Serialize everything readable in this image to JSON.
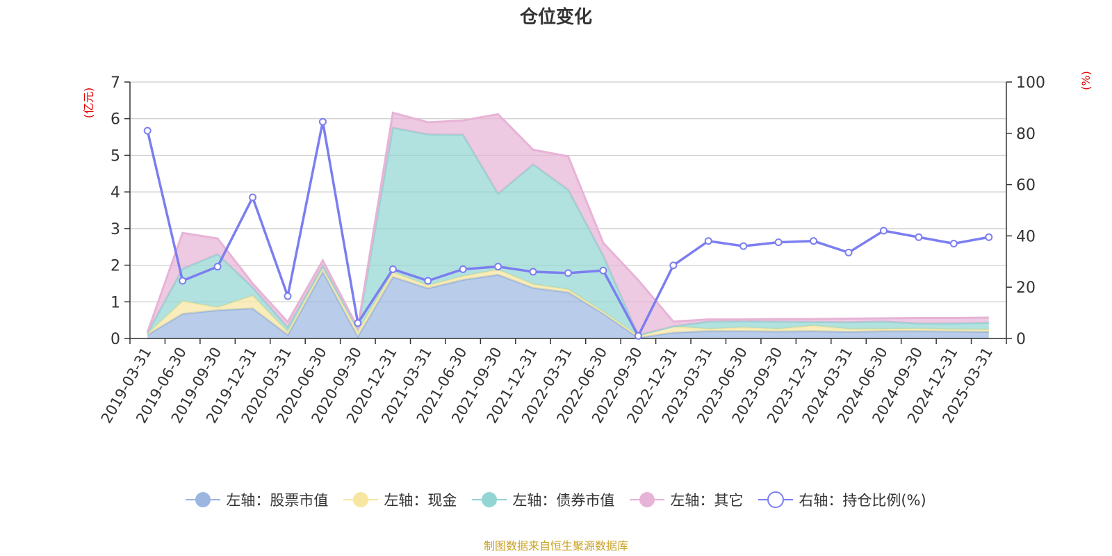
{
  "title": "仓位变化",
  "footer": "制图数据来自恒生聚源数据库",
  "colors": {
    "stock": "#9bb6e0",
    "cash": "#f6e6a0",
    "bond": "#92d5d3",
    "other": "#e7b3d6",
    "ratio": "#7b7ef0",
    "axis_unit": "#e00000"
  },
  "chart_data": {
    "type": "area",
    "stacked": true,
    "title": "仓位变化",
    "left_axis_unit": "(亿元)",
    "right_axis_unit": "(%)",
    "ylim_left": [
      0,
      7
    ],
    "ylim_right": [
      0,
      100
    ],
    "left_ticks": [
      "0",
      "1",
      "2",
      "3",
      "4",
      "5",
      "6",
      "7"
    ],
    "right_ticks": [
      "0",
      "20",
      "40",
      "60",
      "80",
      "100"
    ],
    "grid": true,
    "legend_position": "bottom",
    "x": [
      "2019-03-31",
      "2019-06-30",
      "2019-09-30",
      "2019-12-31",
      "2020-03-31",
      "2020-06-30",
      "2020-09-30",
      "2020-12-31",
      "2021-03-31",
      "2021-06-30",
      "2021-09-30",
      "2021-12-31",
      "2022-03-31",
      "2022-06-30",
      "2022-09-30",
      "2022-12-31",
      "2023-03-31",
      "2023-06-30",
      "2023-09-30",
      "2023-12-31",
      "2024-03-31",
      "2024-06-30",
      "2024-09-30",
      "2024-12-31",
      "2025-03-31"
    ],
    "series": [
      {
        "name": "左轴：股票市值",
        "axis": "left",
        "values": [
          0.1,
          0.67,
          0.77,
          0.82,
          0.1,
          1.82,
          0.05,
          1.68,
          1.37,
          1.6,
          1.74,
          1.38,
          1.26,
          0.68,
          0.02,
          0.16,
          0.2,
          0.2,
          0.19,
          0.2,
          0.18,
          0.2,
          0.2,
          0.19,
          0.18
        ]
      },
      {
        "name": "左轴：现金",
        "axis": "left",
        "values": [
          0.03,
          0.35,
          0.08,
          0.35,
          0.08,
          0.13,
          0.15,
          0.13,
          0.08,
          0.1,
          0.14,
          0.1,
          0.08,
          0.05,
          0.06,
          0.17,
          0.06,
          0.1,
          0.07,
          0.15,
          0.08,
          0.06,
          0.07,
          0.06,
          0.06
        ]
      },
      {
        "name": "左轴：债券市值",
        "axis": "left",
        "values": [
          0.02,
          0.88,
          1.45,
          0.22,
          0.12,
          0.03,
          0.06,
          3.94,
          4.12,
          3.86,
          2.07,
          3.27,
          2.72,
          1.53,
          0.01,
          0,
          0.2,
          0.17,
          0.2,
          0.1,
          0.18,
          0.2,
          0.14,
          0.16,
          0.19
        ]
      },
      {
        "name": "左轴：其它",
        "axis": "left",
        "values": [
          0.02,
          0.98,
          0.43,
          0.11,
          0.15,
          0.15,
          0.03,
          0.41,
          0.33,
          0.39,
          2.17,
          0.4,
          0.91,
          0.35,
          1.5,
          0.13,
          0.06,
          0.05,
          0.07,
          0.08,
          0.1,
          0.09,
          0.15,
          0.15,
          0.14
        ]
      },
      {
        "name": "右轴：持仓比例(%)",
        "axis": "right",
        "type": "line",
        "values": [
          81,
          22.5,
          28,
          55,
          16.5,
          84.5,
          6,
          27,
          22.5,
          27,
          28,
          26,
          25.5,
          26.5,
          1,
          28.5,
          38,
          36,
          37.5,
          38,
          33.5,
          42,
          39.5,
          37,
          39.5
        ]
      }
    ]
  }
}
